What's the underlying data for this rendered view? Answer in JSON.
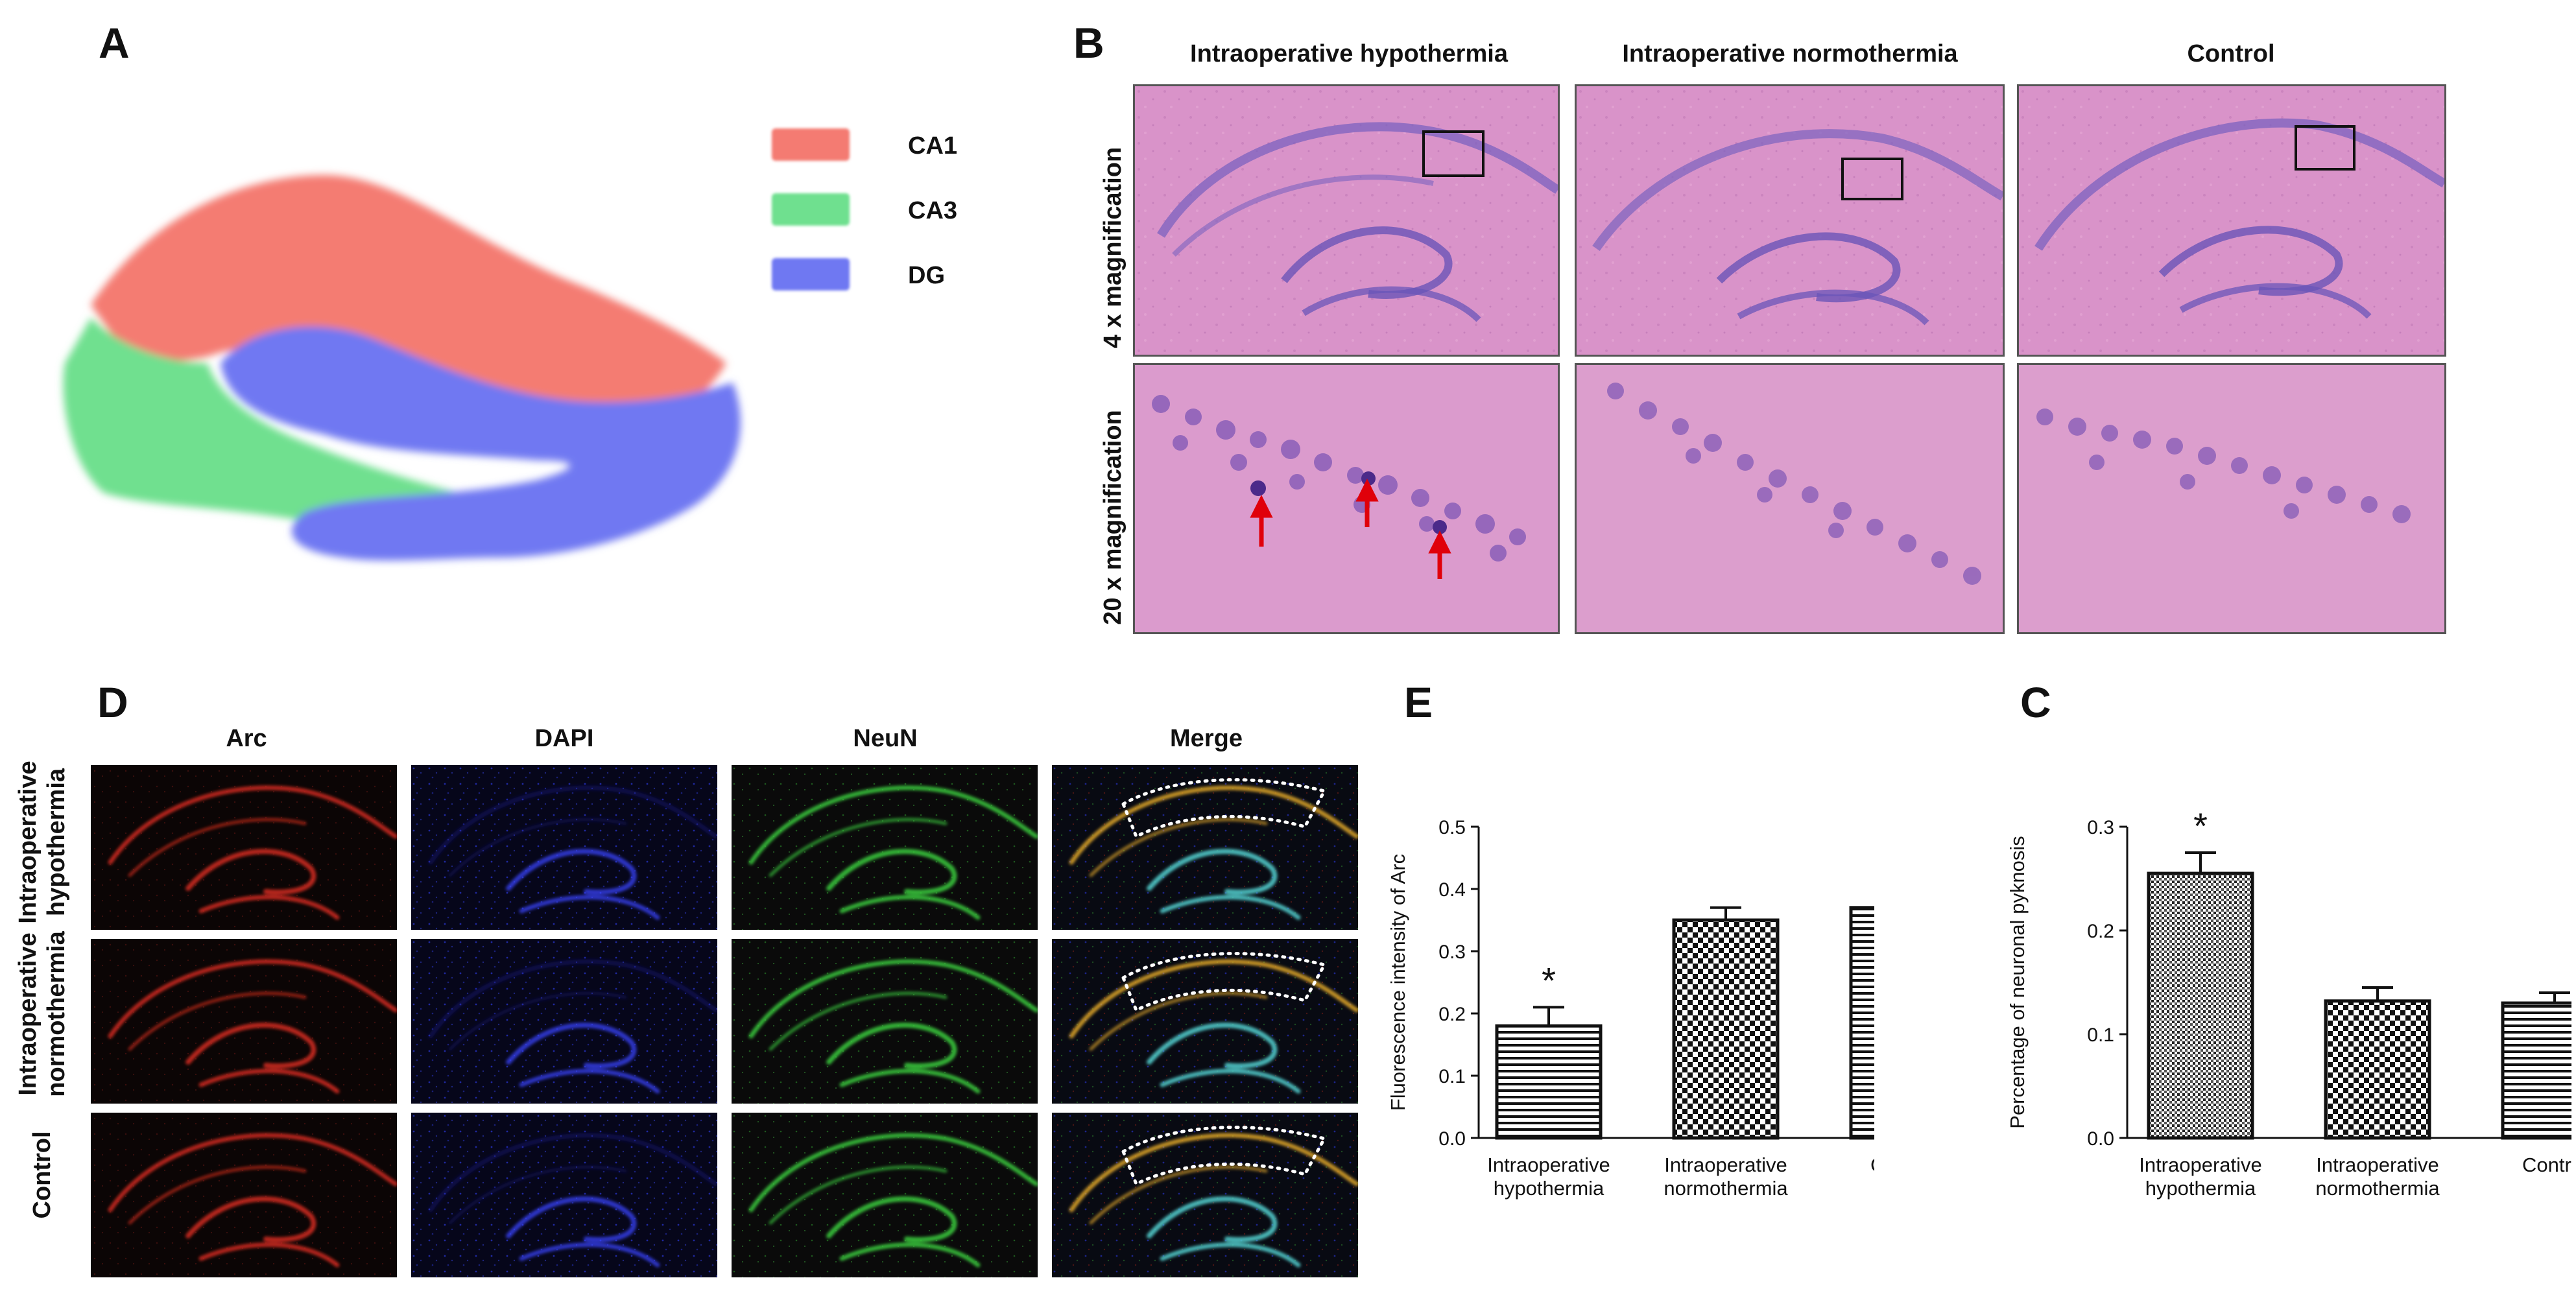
{
  "panels": {
    "A": {
      "letter": "A",
      "legend": [
        {
          "label": "CA1",
          "color": "#f47b72"
        },
        {
          "label": "CA3",
          "color": "#6fe08f"
        },
        {
          "label": "DG",
          "color": "#6f78f2"
        }
      ]
    },
    "B": {
      "letter": "B",
      "columns": [
        "Intraoperative hypothermia",
        "Intraoperative normothermia",
        "Control"
      ],
      "rows": [
        "4 x magnification",
        "20 x magnification"
      ]
    },
    "D": {
      "letter": "D",
      "columns": [
        "Arc",
        "DAPI",
        "NeuN",
        "Merge"
      ],
      "rows": [
        {
          "line1": "Intraoperative",
          "line2": "hypothermia"
        },
        {
          "line1": "Intraoperative",
          "line2": "normothermia"
        },
        {
          "line1": "Control",
          "line2": ""
        }
      ]
    },
    "E": {
      "letter": "E"
    },
    "C": {
      "letter": "C"
    }
  },
  "colors": {
    "he_pink": "#d58fc6",
    "arc_red": "#c8281e",
    "dapi_blue": "#2a36d8",
    "neun_green": "#38c23a",
    "arrow_red": "#e0000a"
  },
  "chart_data": [
    {
      "type": "bar",
      "panel": "E",
      "categories": [
        "Intraoperative hypothermia",
        "Intraoperative normothermia",
        "Control"
      ],
      "category_lines": [
        [
          "Intraoperative",
          "hypothermia"
        ],
        [
          "Intraoperative",
          "normothermia"
        ],
        [
          "Control"
        ]
      ],
      "values": [
        0.18,
        0.35,
        0.37
      ],
      "errors": [
        0.03,
        0.02,
        0.018
      ],
      "significance": [
        "*",
        "",
        ""
      ],
      "patterns": [
        "horizontal-lines",
        "checker",
        "horizontal-lines"
      ],
      "ylabel": "Fluorescence intensity of Arc",
      "ylim": [
        0,
        0.5
      ],
      "yticks": [
        0.0,
        0.1,
        0.2,
        0.3,
        0.4,
        0.5
      ],
      "ytick_labels": [
        "0.0",
        "0.1",
        "0.2",
        "0.3",
        "0.4",
        "0.5"
      ]
    },
    {
      "type": "bar",
      "panel": "C",
      "categories": [
        "Intraoperative hypothermia",
        "Intraoperative normothermia",
        "Control"
      ],
      "category_lines": [
        [
          "Intraoperative",
          "hypothermia"
        ],
        [
          "Intraoperative",
          "normothermia"
        ],
        [
          "Control"
        ]
      ],
      "values": [
        0.255,
        0.132,
        0.13
      ],
      "errors": [
        0.02,
        0.013,
        0.01
      ],
      "significance": [
        "*",
        "",
        ""
      ],
      "patterns": [
        "dense-dots",
        "checker",
        "horizontal-lines"
      ],
      "ylabel": "Percentage of neuronal pyknosis",
      "ylim": [
        0,
        0.3
      ],
      "yticks": [
        0.0,
        0.1,
        0.2,
        0.3
      ],
      "ytick_labels": [
        "0.0",
        "0.1",
        "0.2",
        "0.3"
      ]
    }
  ]
}
